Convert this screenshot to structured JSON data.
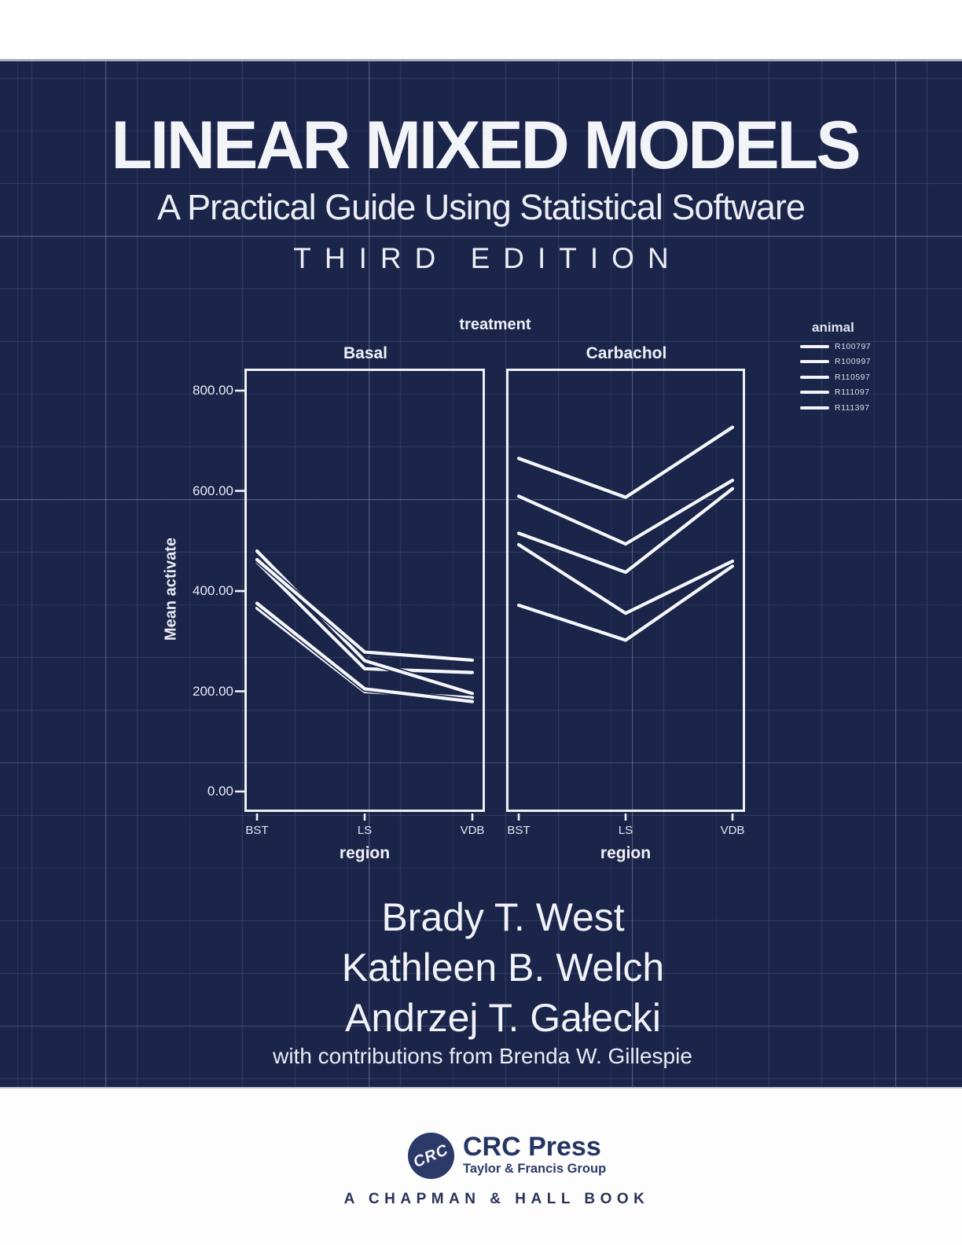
{
  "cover": {
    "title": "LINEAR MIXED MODELS",
    "subtitle": "A Practical Guide Using Statistical Software",
    "edition": "THIRD EDITION",
    "authors": [
      "Brady T. West",
      "Kathleen B. Welch",
      "Andrzej T. Gałecki"
    ],
    "contributions": "with contributions from Brenda W. Gillespie",
    "colors": {
      "background": "#1b2449",
      "text": "#f3f4f8",
      "grid": "#8c9bc3"
    }
  },
  "chart_data": {
    "type": "line",
    "title": "treatment",
    "panels": [
      "Basal",
      "Carbachol"
    ],
    "categories": [
      "BST",
      "LS",
      "VDB"
    ],
    "xlabel": "region",
    "ylabel": "Mean activate",
    "ytick_labels": [
      "800.00",
      "600.00",
      "400.00",
      "200.00",
      "0.00"
    ],
    "ytick_values": [
      800,
      600,
      400,
      200,
      0
    ],
    "ylim": [
      -40,
      845
    ],
    "grid": true,
    "legend_title": "animal",
    "legend_position": "top-right",
    "line_color": "#f5f7fc",
    "series": [
      {
        "name": "R100797",
        "values": {
          "Basal": [
            458.16,
            245.04,
            237.42
          ],
          "Carbachol": [
            664.72,
            587.1,
            726.96
          ]
        }
      },
      {
        "name": "R100997",
        "values": {
          "Basal": [
            479.81,
            261.19,
            195.51
          ],
          "Carbachol": [
            515.29,
            437.56,
            604.29
          ]
        }
      },
      {
        "name": "R110597",
        "values": {
          "Basal": [
            462.79,
            278.33,
            262.05
          ],
          "Carbachol": [
            589.25,
            493.93,
            621.07
          ]
        }
      },
      {
        "name": "R111097",
        "values": {
          "Basal": [
            366.19,
            199.31,
            187.11
          ],
          "Carbachol": [
            371.71,
            302.02,
            449.7
          ]
        }
      },
      {
        "name": "R111397",
        "values": {
          "Basal": [
            375.58,
            204.85,
            179.38
          ],
          "Carbachol": [
            492.58,
            355.74,
            459.58
          ]
        }
      }
    ]
  },
  "publisher": {
    "logo_monogram": "CRC",
    "name": "CRC Press",
    "group": "Taylor & Francis Group",
    "imprint_line": "A CHAPMAN & HALL BOOK",
    "accent_color": "#2b3a68"
  }
}
